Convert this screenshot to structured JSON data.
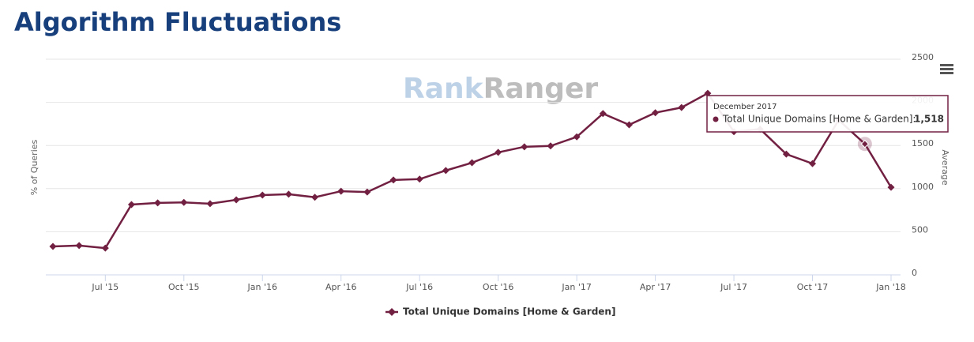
{
  "chart_data": {
    "type": "line",
    "title": "Algorithm Fluctuations",
    "watermark": {
      "first": "Rank",
      "second": "Ranger"
    },
    "y_label": "% of Queries",
    "y2_label": "Average",
    "categories": [
      null,
      null,
      "Jul '15",
      null,
      null,
      "Oct '15",
      null,
      null,
      "Jan '16",
      null,
      null,
      "Apr '16",
      null,
      null,
      "Jul '16",
      null,
      null,
      "Oct '16",
      null,
      null,
      "Jan '17",
      null,
      null,
      "Apr '17",
      null,
      null,
      "Jul '17",
      null,
      null,
      "Oct '17",
      null,
      null,
      "Jan '18"
    ],
    "series": [
      {
        "name": "Total Unique Domains [Home & Garden]",
        "color": "#722042",
        "axis": "y2",
        "values": [
          330,
          340,
          310,
          815,
          835,
          840,
          825,
          870,
          925,
          935,
          900,
          970,
          960,
          1100,
          1110,
          1210,
          1300,
          1420,
          1485,
          1495,
          1600,
          1870,
          1740,
          1880,
          1940,
          2105,
          1660,
          1690,
          1400,
          1290,
          1795,
          1518,
          1015
        ],
        "value_labels": [
          null,
          null,
          null,
          null,
          null,
          null,
          null,
          null,
          null,
          null,
          null,
          null,
          null,
          null,
          null,
          null,
          null,
          null,
          null,
          null,
          null,
          null,
          null,
          null,
          null,
          null,
          null,
          null,
          null,
          null,
          null,
          "1,518",
          null
        ]
      }
    ],
    "y2lim": [
      0,
      2500
    ],
    "y2ticks": [
      0,
      500,
      1000,
      1500,
      2000,
      2500
    ],
    "grid": true,
    "legend": "bottom",
    "tooltip": {
      "title": "December 2017",
      "text": "Total Unique Domains [Home & Garden]:"
    }
  }
}
